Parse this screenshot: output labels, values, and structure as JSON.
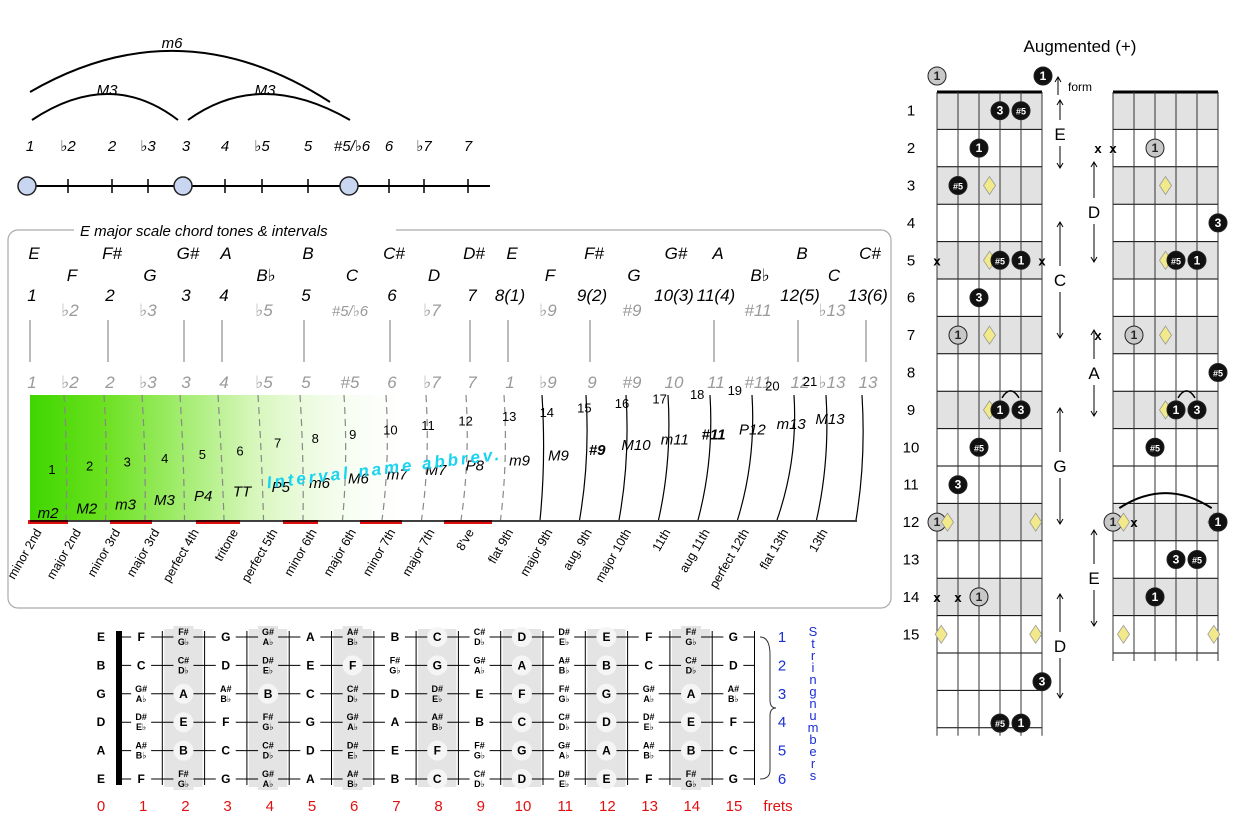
{
  "interval_line": {
    "arcs": [
      "m6",
      "M3",
      "M3"
    ],
    "degrees": [
      "1",
      "♭2",
      "2",
      "♭3",
      "3",
      "4",
      "♭5",
      "5",
      "#5/♭6",
      "6",
      "♭7",
      "7"
    ]
  },
  "chord_box": {
    "title": "E major scale chord tones & intervals",
    "notes": [
      "E",
      "F",
      "F#",
      "G",
      "G#",
      "A",
      "B♭",
      "B",
      "C",
      "C#",
      "D",
      "D#",
      "E",
      "F",
      "F#",
      "G",
      "G#",
      "A",
      "B♭",
      "B",
      "C",
      "C#"
    ],
    "degrees_top": [
      "1",
      "♭2",
      "2",
      "♭3",
      "3",
      "4",
      "♭5",
      "5",
      "#5/♭6",
      "6",
      "♭7",
      "7",
      "8(1)",
      "♭9",
      "9(2)",
      "#9",
      "10(3)",
      "11(4)",
      "#11",
      "12(5)",
      "♭13",
      "13(6)"
    ],
    "degrees_gray": [
      "1",
      "♭2",
      "2",
      "♭3",
      "3",
      "4",
      "♭5",
      "5",
      "#5",
      "6",
      "♭7",
      "7",
      "1",
      "♭9",
      "9",
      "#9",
      "10",
      "11",
      "#11",
      "12",
      "♭13",
      "13"
    ],
    "semitones": [
      "1",
      "2",
      "3",
      "4",
      "5",
      "6",
      "7",
      "8",
      "9",
      "10",
      "11",
      "12",
      "13",
      "14",
      "15",
      "16",
      "17",
      "18",
      "19",
      "20",
      "21"
    ],
    "abbrev": [
      "m2",
      "M2",
      "m3",
      "M3",
      "P4",
      "TT",
      "P5",
      "m6",
      "M6",
      "m7",
      "M7",
      "P8",
      "m9",
      "M9",
      "#9",
      "M10",
      "m11",
      "#11",
      "P12",
      "m13",
      "M13"
    ],
    "overlay": "Interval name abbrev.",
    "names": [
      "minor 2nd",
      "major 2nd",
      "minor 3rd",
      "major 3rd",
      "perfect 4th",
      "tritone",
      "perfect 5th",
      "minor 6th",
      "major 6th",
      "minor 7th",
      "major 7th",
      "8've",
      "flat 9th",
      "major 9th",
      "aug. 9th",
      "major 10th",
      "11th",
      "aug 11th",
      "perfect 12th",
      "flat 13th",
      "13th"
    ]
  },
  "fretboard_map": {
    "open_strings": [
      "E",
      "B",
      "G",
      "D",
      "A",
      "E"
    ],
    "string_numbers": [
      "1",
      "2",
      "3",
      "4",
      "5",
      "6"
    ],
    "side_label": "String numbers",
    "fret_numbers": [
      "0",
      "1",
      "2",
      "3",
      "4",
      "5",
      "6",
      "7",
      "8",
      "9",
      "10",
      "11",
      "12",
      "13",
      "14",
      "15"
    ],
    "frets_label": "frets"
  },
  "augmented": {
    "title": "Augmented (+)",
    "form_label": "form",
    "fret_labels": [
      "1",
      "2",
      "3",
      "4",
      "5",
      "6",
      "7",
      "8",
      "9",
      "10",
      "11",
      "12",
      "13",
      "14",
      "15"
    ],
    "shape_letters_left": [
      "E",
      "D",
      "C",
      "A",
      "G",
      "E",
      "D"
    ],
    "shape_letters_right": [
      "D",
      "A",
      "E"
    ],
    "markers": {
      "root": "1",
      "third": "3",
      "fifth": "#5",
      "mute": "x"
    }
  },
  "colors": {
    "accent_red": "#e01010",
    "string_blue": "#1a2fd6",
    "gradient_green": "#44dd00",
    "diamond": "#f2ea8a"
  }
}
